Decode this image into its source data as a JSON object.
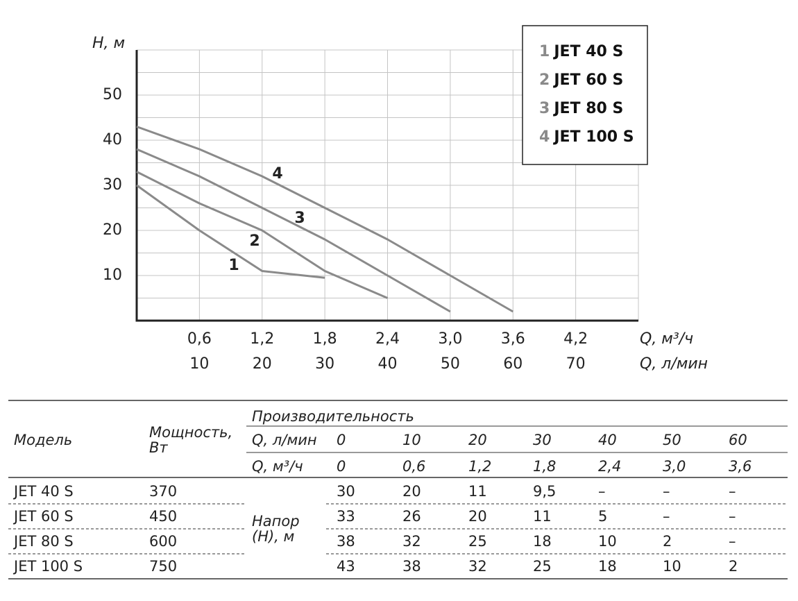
{
  "chart_data": {
    "type": "line",
    "y_label": "H, м",
    "x_label": "Q, л/мин",
    "x2_label": "Q, м³/ч",
    "x": [
      0,
      10,
      20,
      30,
      40,
      50,
      60
    ],
    "xlim": [
      0,
      80
    ],
    "xticks": [
      10,
      20,
      30,
      40,
      50,
      60,
      70
    ],
    "x2lim": [
      0,
      4.8
    ],
    "x2ticks": [
      {
        "value": 0.6,
        "label": "0,6"
      },
      {
        "value": 1.2,
        "label": "1,2"
      },
      {
        "value": 1.8,
        "label": "1,8"
      },
      {
        "value": 2.4,
        "label": "2,4"
      },
      {
        "value": 3.0,
        "label": "3,0"
      },
      {
        "value": 3.6,
        "label": "3,6"
      },
      {
        "value": 4.2,
        "label": "4,2"
      }
    ],
    "ylim": [
      0,
      60
    ],
    "yticks": [
      10,
      20,
      30,
      40,
      50
    ],
    "y_minor_grid": [
      5,
      15,
      25,
      35,
      45,
      55,
      60
    ],
    "grid": true,
    "legend": "top-right",
    "series": [
      {
        "label": "1",
        "name": "JET 40 S",
        "color": "#8a8a8a",
        "values": [
          30,
          20,
          11,
          9.5,
          null,
          null,
          null
        ]
      },
      {
        "label": "2",
        "name": "JET 60 S",
        "color": "#8a8a8a",
        "values": [
          33,
          26,
          20,
          11,
          5,
          null,
          null
        ]
      },
      {
        "label": "3",
        "name": "JET 80 S",
        "color": "#8a8a8a",
        "values": [
          38,
          32,
          25,
          18,
          10,
          2,
          null
        ]
      },
      {
        "label": "4",
        "name": "JET 100 S",
        "color": "#8a8a8a",
        "values": [
          43,
          38,
          32,
          25,
          18,
          10,
          2
        ]
      }
    ]
  },
  "table": {
    "header": {
      "model": "Модель",
      "power": "Мощность, Вт",
      "performance": "Производительность",
      "flow_lpm": "Q, л/мин",
      "flow_m3h": "Q, м³/ч",
      "head": "Напор (Н), м"
    },
    "flow_lpm": [
      "0",
      "10",
      "20",
      "30",
      "40",
      "50",
      "60"
    ],
    "flow_m3h": [
      "0",
      "0,6",
      "1,2",
      "1,8",
      "2,4",
      "3,0",
      "3,6"
    ],
    "rows": [
      {
        "model": "JET 40 S",
        "power": "370",
        "head": [
          "30",
          "20",
          "11",
          "9,5",
          "–",
          "–",
          "–"
        ]
      },
      {
        "model": "JET 60 S",
        "power": "450",
        "head": [
          "33",
          "26",
          "20",
          "11",
          "5",
          "–",
          "–"
        ]
      },
      {
        "model": "JET 80 S",
        "power": "600",
        "head": [
          "38",
          "32",
          "25",
          "18",
          "10",
          "2",
          "–"
        ]
      },
      {
        "model": "JET 100 S",
        "power": "750",
        "head": [
          "43",
          "38",
          "32",
          "25",
          "18",
          "10",
          "2"
        ]
      }
    ]
  }
}
